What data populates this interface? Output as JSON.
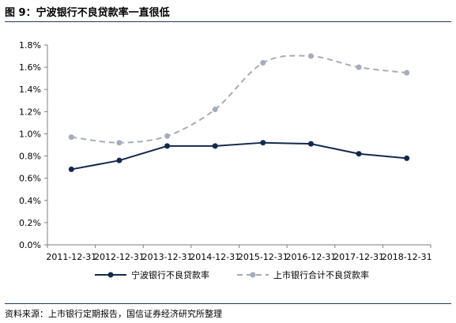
{
  "figure_title": "图 9：宁波银行不良贷款率一直很低",
  "source_note": "资料来源：上市银行定期报告，国信证券经济研究所整理",
  "colors": {
    "rule": "#1f3864"
  },
  "chart_data": {
    "type": "line",
    "categories": [
      "2011-12-31",
      "2012-12-31",
      "2013-12-31",
      "2014-12-31",
      "2015-12-31",
      "2016-12-31",
      "2017-12-31",
      "2018-12-31"
    ],
    "ylim": [
      0,
      1.8
    ],
    "yticks": [
      "0.0%",
      "0.2%",
      "0.4%",
      "0.6%",
      "0.8%",
      "1.0%",
      "1.2%",
      "1.4%",
      "1.6%",
      "1.8%"
    ],
    "xlabel": "",
    "ylabel": "",
    "grid": false,
    "legend_position": "bottom",
    "series": [
      {
        "name": "宁波银行不良贷款率",
        "values": [
          0.68,
          0.76,
          0.89,
          0.89,
          0.92,
          0.91,
          0.82,
          0.78
        ],
        "color": "#14284b",
        "style": "solid"
      },
      {
        "name": "上市银行合计不良贷款率",
        "values": [
          0.97,
          0.92,
          0.98,
          1.22,
          1.64,
          1.7,
          1.6,
          1.55
        ],
        "color": "#a6acb8",
        "style": "dashed"
      }
    ]
  }
}
